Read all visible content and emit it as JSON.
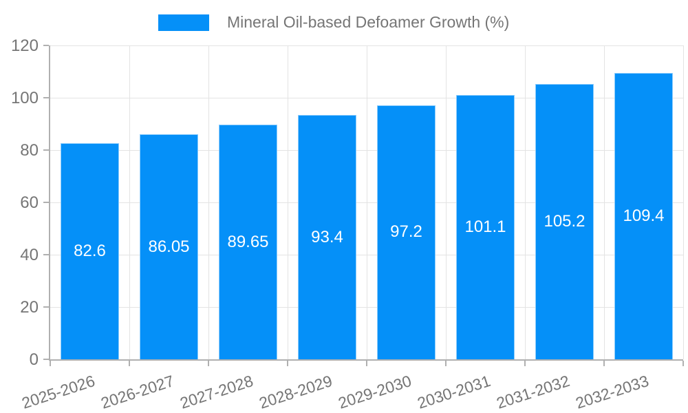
{
  "legend": {
    "label": "Mineral Oil-based Defoamer Growth (%)"
  },
  "chart_data": {
    "type": "bar",
    "title": "Mineral Oil-based Defoamer Growth (%)",
    "series_name": "Mineral Oil-based Defoamer Growth (%)",
    "categories": [
      "2025-2026",
      "2026-2027",
      "2027-2028",
      "2028-2029",
      "2029-2030",
      "2030-2031",
      "2031-2032",
      "2032-2033"
    ],
    "values": [
      82.6,
      86.05,
      89.65,
      93.4,
      97.2,
      101.1,
      105.2,
      109.4
    ],
    "value_labels": [
      "82.6",
      "86.05",
      "89.65",
      "93.4",
      "97.2",
      "101.1",
      "105.2",
      "109.4"
    ],
    "xlabel": "",
    "ylabel": "",
    "ylim": [
      0,
      120
    ],
    "yticks": [
      0,
      20,
      40,
      60,
      80,
      100,
      120
    ],
    "grid": true,
    "legend_position": "top-center",
    "value_label_position": "inside-center"
  },
  "colors": {
    "bar": "#0590f8",
    "bar_border": "rgba(255,255,255,0.55)",
    "gridline": "#e3e3e3",
    "axis_line": "#b0b0b0",
    "tick_text": "#757575",
    "legend_text": "#757575",
    "value_label_text": "#ffffff",
    "background": "#ffffff"
  }
}
